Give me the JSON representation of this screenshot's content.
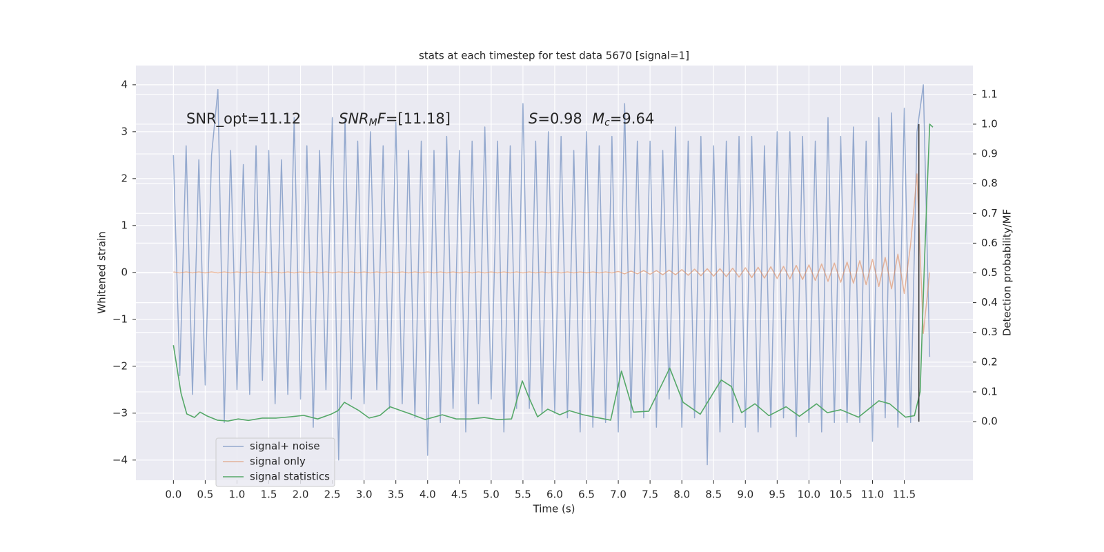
{
  "chart_data": {
    "type": "line",
    "title": "stats at each timestep for test data 5670 [signal=1]",
    "xlabel": "Time (s)",
    "ylabel": "Whitened strain",
    "y2label": "Detection probability/MF",
    "xlim": [
      -0.59,
      12.58
    ],
    "ylim": [
      -4.43,
      4.41
    ],
    "y2lim": [
      -0.197,
      1.197
    ],
    "xticks": [
      {
        "value": 0,
        "label": "0.0"
      },
      0.5,
      {
        "value": 1,
        "label": "1.0"
      },
      1.5,
      {
        "value": 2,
        "label": "2.0"
      },
      2.5,
      {
        "value": 3,
        "label": "3.0"
      },
      3.5,
      {
        "value": 4,
        "label": "4.0"
      },
      4.5,
      {
        "value": 5,
        "label": "5.0"
      },
      5.5,
      {
        "value": 6,
        "label": "6.0"
      },
      6.5,
      {
        "value": 7,
        "label": "7.0"
      },
      7.5,
      {
        "value": 8,
        "label": "8.0"
      },
      8.5,
      {
        "value": 9,
        "label": "9.0"
      },
      9.5,
      {
        "value": 10,
        "label": "10.0"
      },
      10.5,
      {
        "value": 11,
        "label": "11.0"
      },
      11.5
    ],
    "yticks": [
      {
        "value": -4,
        "label": "−4"
      },
      {
        "value": -3,
        "label": "−3"
      },
      {
        "value": -2,
        "label": "−2"
      },
      {
        "value": -1,
        "label": "−1"
      },
      0,
      1,
      2,
      3,
      4
    ],
    "y2ticks": [
      {
        "value": 0,
        "label": "0.0"
      },
      0.1,
      0.2,
      0.3,
      0.4,
      0.5,
      0.6,
      0.7,
      0.8,
      0.9,
      {
        "value": 1,
        "label": "1.0"
      },
      1.1
    ],
    "grid": true,
    "legend": "lower left",
    "annotations": [
      {
        "parts": [
          {
            "text": "SNR_opt=11.12"
          }
        ]
      },
      {
        "parts": [
          {
            "text": "SNR",
            "style": "italic"
          },
          {
            "text": "M",
            "style": "italic-sub"
          },
          {
            "text": "F",
            "style": "italic"
          },
          {
            "text": "=[11.18]"
          }
        ]
      },
      {
        "parts": [
          {
            "text": "S",
            "style": "italic"
          },
          {
            "text": "=0.98"
          }
        ]
      },
      {
        "parts": [
          {
            "text": "M",
            "style": "italic"
          },
          {
            "text": "c",
            "style": "italic-sub"
          },
          {
            "text": "=9.64"
          }
        ]
      }
    ],
    "marker_line": {
      "x": 11.73,
      "ymin": 0,
      "ymax": 1.0,
      "axis": "y2",
      "color": "#333333"
    },
    "x": [
      0,
      0.1,
      0.2,
      0.3,
      0.4,
      0.5,
      0.6,
      0.7,
      0.8,
      0.9,
      1,
      1.1,
      1.2,
      1.3,
      1.4,
      1.5,
      1.6,
      1.7,
      1.8,
      1.9,
      2,
      2.1,
      2.2,
      2.3,
      2.4,
      2.5,
      2.6,
      2.7,
      2.8,
      2.9,
      3,
      3.1,
      3.2,
      3.3,
      3.4,
      3.5,
      3.6,
      3.7,
      3.8,
      3.9,
      4,
      4.1,
      4.2,
      4.3,
      4.4,
      4.5,
      4.6,
      4.7,
      4.8,
      4.9,
      5,
      5.1,
      5.2,
      5.3,
      5.4,
      5.5,
      5.6,
      5.7,
      5.8,
      5.9,
      6,
      6.1,
      6.2,
      6.3,
      6.4,
      6.5,
      6.6,
      6.7,
      6.8,
      6.9,
      7,
      7.1,
      7.2,
      7.3,
      7.4,
      7.5,
      7.6,
      7.7,
      7.8,
      7.9,
      8,
      8.1,
      8.2,
      8.3,
      8.4,
      8.5,
      8.6,
      8.7,
      8.8,
      8.9,
      9,
      9.1,
      9.2,
      9.3,
      9.4,
      9.5,
      9.6,
      9.7,
      9.8,
      9.9,
      10,
      10.1,
      10.2,
      10.3,
      10.4,
      10.5,
      10.6,
      10.7,
      10.8,
      10.9,
      11,
      11.1,
      11.2,
      11.3,
      11.4,
      11.5,
      11.6,
      11.7,
      11.8,
      11.9
    ],
    "series": [
      {
        "name": "signal+ noise",
        "color": "#4c72b0",
        "values": [
          2.5,
          -2.2,
          2.7,
          -2.6,
          2.4,
          -2.4,
          2.5,
          3.9,
          -3.2,
          2.6,
          -2.5,
          2.3,
          -2.6,
          2.7,
          -2.3,
          2.6,
          -2.8,
          2.4,
          -2.6,
          3.3,
          -2.7,
          2.7,
          -3.3,
          2.6,
          -2.5,
          3.3,
          -4.0,
          3.3,
          -2.7,
          2.8,
          -2.8,
          3.0,
          -2.5,
          2.7,
          -2.9,
          3.2,
          -2.8,
          2.6,
          -3.1,
          2.8,
          -3.9,
          2.6,
          -3.2,
          2.9,
          -2.9,
          2.6,
          -3.4,
          2.8,
          -2.8,
          3.1,
          -2.7,
          2.8,
          -3.4,
          2.7,
          -2.9,
          3.6,
          -2.9,
          2.8,
          -3.0,
          3.0,
          -3.0,
          2.9,
          -3.1,
          2.6,
          -3.4,
          3.0,
          -3.3,
          2.7,
          -3.2,
          2.9,
          -3.4,
          3.6,
          -3.1,
          2.8,
          -3.1,
          2.8,
          -3.3,
          2.6,
          -2.7,
          3.1,
          -3.3,
          2.8,
          -3.1,
          2.9,
          -4.1,
          2.7,
          -3.4,
          2.8,
          -3.2,
          2.9,
          -3.3,
          2.9,
          -3.4,
          2.7,
          -3.3,
          3.0,
          -3.1,
          3.0,
          -3.5,
          2.9,
          -3.2,
          2.8,
          -3.4,
          3.3,
          -3.2,
          2.9,
          -3.2,
          3.1,
          -3.2,
          2.8,
          -3.6,
          3.3,
          -3.1,
          3.4,
          -3.3,
          3.5,
          -3.2,
          3.0,
          4.0,
          -1.8
        ]
      },
      {
        "name": "signal only",
        "color": "#dd8452",
        "values": [
          0.01,
          -0.01,
          0.01,
          -0.01,
          0.01,
          -0.01,
          0.01,
          -0.01,
          0.01,
          -0.01,
          0.01,
          -0.01,
          0.01,
          -0.01,
          0.01,
          -0.01,
          0.01,
          -0.01,
          0.01,
          -0.01,
          0.01,
          -0.01,
          0.01,
          -0.01,
          0.01,
          -0.01,
          0.01,
          -0.01,
          0.01,
          -0.01,
          0.01,
          -0.01,
          0.01,
          -0.01,
          0.01,
          -0.01,
          0.01,
          -0.01,
          0.01,
          -0.01,
          0.01,
          -0.01,
          0.01,
          -0.01,
          0.01,
          -0.01,
          0.01,
          -0.01,
          0.01,
          -0.01,
          0.01,
          -0.01,
          0.01,
          -0.01,
          0.01,
          -0.01,
          0.01,
          -0.01,
          0.01,
          -0.01,
          0.01,
          -0.01,
          0.01,
          -0.01,
          0.01,
          -0.01,
          0.01,
          -0.01,
          0.01,
          -0.01,
          0.02,
          -0.03,
          0.03,
          -0.03,
          0.04,
          -0.04,
          0.04,
          -0.05,
          0.05,
          -0.05,
          0.06,
          -0.06,
          0.07,
          -0.07,
          0.08,
          -0.08,
          0.08,
          -0.09,
          0.09,
          -0.1,
          0.1,
          -0.11,
          0.11,
          -0.12,
          0.12,
          -0.13,
          0.13,
          -0.14,
          0.15,
          -0.15,
          0.16,
          -0.17,
          0.18,
          -0.19,
          0.2,
          -0.21,
          0.22,
          -0.23,
          0.25,
          -0.26,
          0.28,
          -0.3,
          0.32,
          -0.35,
          0.39,
          -0.45,
          0.6,
          2.1,
          -1.3,
          0.0
        ]
      },
      {
        "name": "signal statistics",
        "color": "#55a868",
        "axis": "y2",
        "x": [
          0,
          0.12,
          0.21,
          0.33,
          0.42,
          0.53,
          0.69,
          0.86,
          1.02,
          1.18,
          1.4,
          1.62,
          1.83,
          2.05,
          2.27,
          2.48,
          2.59,
          2.69,
          2.92,
          3.08,
          3.25,
          3.41,
          3.58,
          3.74,
          3.96,
          4.23,
          4.45,
          4.67,
          4.89,
          5.1,
          5.32,
          5.49,
          5.59,
          5.73,
          5.89,
          6.08,
          6.23,
          6.45,
          6.61,
          6.88,
          7.05,
          7.24,
          7.48,
          7.81,
          8.02,
          8.29,
          8.62,
          8.78,
          8.94,
          9.15,
          9.37,
          9.64,
          9.85,
          10.12,
          10.29,
          10.5,
          10.78,
          11.1,
          11.27,
          11.52,
          11.66,
          11.75,
          11.82,
          11.9,
          11.95
        ],
        "values": [
          0.257,
          0.095,
          0.026,
          0.014,
          0.032,
          0.019,
          0.005,
          0.002,
          0.009,
          0.004,
          0.012,
          0.012,
          0.016,
          0.021,
          0.009,
          0.025,
          0.037,
          0.065,
          0.037,
          0.012,
          0.021,
          0.05,
          0.037,
          0.025,
          0.007,
          0.023,
          0.009,
          0.009,
          0.014,
          0.007,
          0.009,
          0.137,
          0.083,
          0.016,
          0.042,
          0.023,
          0.037,
          0.023,
          0.016,
          0.005,
          0.17,
          0.032,
          0.035,
          0.18,
          0.065,
          0.025,
          0.14,
          0.118,
          0.03,
          0.06,
          0.02,
          0.05,
          0.018,
          0.06,
          0.03,
          0.04,
          0.015,
          0.07,
          0.06,
          0.015,
          0.02,
          0.1,
          0.55,
          1.0,
          0.99
        ]
      }
    ]
  }
}
